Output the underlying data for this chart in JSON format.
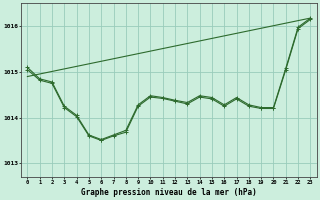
{
  "title": "Graphe pression niveau de la mer (hPa)",
  "background_color": "#cceedd",
  "grid_color": "#99ccbb",
  "line_color": "#2d6a2d",
  "x_ticks": [
    0,
    1,
    2,
    3,
    4,
    5,
    6,
    7,
    8,
    9,
    10,
    11,
    12,
    13,
    14,
    15,
    16,
    17,
    18,
    19,
    20,
    21,
    22,
    23
  ],
  "y_ticks": [
    1013,
    1014,
    1015,
    1016
  ],
  "ylim": [
    1012.7,
    1016.5
  ],
  "xlim": [
    -0.5,
    23.5
  ],
  "series1": [
    1015.1,
    1014.85,
    1014.78,
    1014.25,
    1014.05,
    1013.62,
    1013.52,
    1013.62,
    1013.72,
    1014.28,
    1014.48,
    1014.44,
    1014.38,
    1014.33,
    1014.48,
    1014.44,
    1014.28,
    1014.44,
    1014.28,
    1014.22,
    1014.22,
    1015.08,
    1015.98,
    1016.18
  ],
  "series2": [
    1015.05,
    1014.82,
    1014.75,
    1014.22,
    1014.02,
    1013.6,
    1013.5,
    1013.6,
    1013.68,
    1014.25,
    1014.45,
    1014.42,
    1014.36,
    1014.3,
    1014.45,
    1014.41,
    1014.25,
    1014.41,
    1014.25,
    1014.2,
    1014.2,
    1015.05,
    1015.95,
    1016.15
  ],
  "series3_x": [
    0,
    23
  ],
  "series3_y": [
    1014.9,
    1016.18
  ],
  "figwidth": 3.2,
  "figheight": 2.0,
  "dpi": 100
}
